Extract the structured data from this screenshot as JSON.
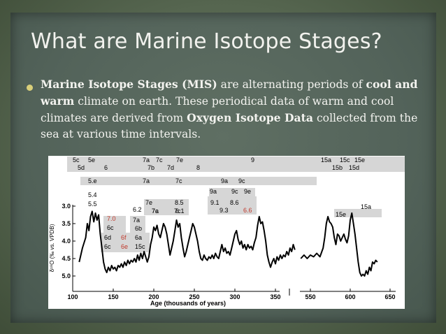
{
  "slide": {
    "title": "What are Marine Isotope Stages?",
    "bullet": {
      "t1": "Marine Isotope Stages (MIS)",
      "t2": " are alternating periods of ",
      "t3": "cool and warm",
      "t4": " climate on earth. These periodical data of warm and cool climates are derived from ",
      "t5": "Oxygen Isotope Data",
      "t6": " collected from the sea at various time intervals."
    }
  },
  "colors": {
    "highlight_red": "#c0392b",
    "label_bg": "#d6d6d6",
    "line": "#000000"
  },
  "chart_data": {
    "type": "line",
    "xlabel": "Age (thousands of years)",
    "ylabel": "δ¹⁸O (‰ vs. VPDB)",
    "xlim": [
      100,
      665
    ],
    "ylim": [
      3.0,
      5.1
    ],
    "y_inverted": true,
    "x_ticks": [
      "100",
      "150",
      "200",
      "250",
      "300",
      "350",
      "550",
      "600",
      "650"
    ],
    "y_ticks": [
      "3.0",
      "3.5",
      "4.0",
      "4.5",
      "5.0"
    ],
    "axis_break": [
      390,
      530
    ],
    "stage_labels_top": [
      "5c",
      "5e",
      "5d",
      "6",
      "7a",
      "7c",
      "7b",
      "7d",
      "7e",
      "8",
      "9",
      "15a",
      "15c",
      "15e",
      "15b",
      "15d"
    ],
    "stage_labels_inner": [
      "5.e",
      "7a",
      "7c",
      "9a",
      "9c",
      "5.4",
      "5.5",
      "9a",
      "9c",
      "9e",
      "7a",
      "7c",
      "7e",
      "8.5",
      "9.1",
      "8.6",
      "9.3",
      "6.6",
      "6.2",
      "7.0",
      "7a",
      "7c",
      "6.1",
      "6c",
      "6b",
      "6d",
      "6f",
      "6a",
      "6c",
      "6e",
      "15c",
      "15a",
      "15e"
    ],
    "red_labels": [
      "6.6",
      "7.0",
      "6f",
      "6e"
    ],
    "series": [
      {
        "segment": "left",
        "points": [
          [
            108,
            4.6
          ],
          [
            112,
            4.2
          ],
          [
            116,
            3.9
          ],
          [
            118,
            3.5
          ],
          [
            120,
            3.7
          ],
          [
            122,
            3.3
          ],
          [
            124,
            3.15
          ],
          [
            126,
            3.45
          ],
          [
            128,
            3.2
          ],
          [
            130,
            3.4
          ],
          [
            132,
            3.25
          ],
          [
            134,
            3.8
          ],
          [
            136,
            4.2
          ],
          [
            138,
            4.6
          ],
          [
            140,
            4.8
          ],
          [
            142,
            4.9
          ],
          [
            144,
            4.75
          ],
          [
            146,
            4.85
          ],
          [
            148,
            4.7
          ],
          [
            150,
            4.8
          ],
          [
            152,
            4.75
          ],
          [
            154,
            4.85
          ],
          [
            156,
            4.7
          ],
          [
            158,
            4.75
          ],
          [
            160,
            4.65
          ],
          [
            162,
            4.75
          ],
          [
            164,
            4.6
          ],
          [
            166,
            4.7
          ],
          [
            168,
            4.55
          ],
          [
            170,
            4.65
          ],
          [
            172,
            4.55
          ],
          [
            174,
            4.6
          ],
          [
            176,
            4.5
          ],
          [
            178,
            4.6
          ],
          [
            180,
            4.4
          ],
          [
            182,
            4.55
          ],
          [
            184,
            4.35
          ],
          [
            186,
            4.5
          ],
          [
            188,
            4.3
          ],
          [
            190,
            4.45
          ],
          [
            192,
            4.6
          ],
          [
            194,
            4.45
          ],
          [
            196,
            4.1
          ],
          [
            198,
            3.9
          ],
          [
            200,
            3.6
          ],
          [
            202,
            3.7
          ],
          [
            204,
            3.55
          ],
          [
            206,
            3.8
          ],
          [
            208,
            3.9
          ],
          [
            210,
            3.7
          ],
          [
            212,
            3.5
          ],
          [
            214,
            3.6
          ],
          [
            216,
            3.8
          ],
          [
            218,
            4.1
          ],
          [
            220,
            4.4
          ],
          [
            222,
            4.2
          ],
          [
            224,
            4.0
          ],
          [
            226,
            3.7
          ],
          [
            228,
            3.4
          ],
          [
            230,
            3.6
          ],
          [
            232,
            3.5
          ],
          [
            234,
            3.9
          ],
          [
            236,
            4.2
          ],
          [
            238,
            4.45
          ],
          [
            240,
            4.3
          ],
          [
            242,
            4.1
          ],
          [
            244,
            3.9
          ],
          [
            246,
            3.7
          ],
          [
            248,
            3.5
          ],
          [
            250,
            3.6
          ],
          [
            252,
            3.8
          ],
          [
            254,
            4.0
          ],
          [
            256,
            4.3
          ],
          [
            258,
            4.5
          ],
          [
            260,
            4.55
          ],
          [
            262,
            4.4
          ],
          [
            264,
            4.5
          ],
          [
            266,
            4.55
          ],
          [
            268,
            4.45
          ],
          [
            270,
            4.5
          ],
          [
            272,
            4.4
          ],
          [
            274,
            4.5
          ],
          [
            276,
            4.35
          ],
          [
            278,
            4.45
          ],
          [
            280,
            4.5
          ],
          [
            282,
            4.3
          ],
          [
            284,
            4.1
          ],
          [
            286,
            4.3
          ],
          [
            288,
            4.2
          ],
          [
            290,
            4.35
          ],
          [
            292,
            4.3
          ],
          [
            294,
            4.4
          ],
          [
            296,
            4.2
          ],
          [
            298,
            4.0
          ],
          [
            300,
            3.8
          ],
          [
            302,
            3.7
          ],
          [
            304,
            3.95
          ],
          [
            306,
            4.1
          ],
          [
            308,
            4.0
          ],
          [
            310,
            4.2
          ],
          [
            312,
            4.1
          ],
          [
            314,
            4.25
          ],
          [
            316,
            4.1
          ],
          [
            318,
            4.2
          ],
          [
            320,
            4.15
          ],
          [
            322,
            4.25
          ],
          [
            324,
            4.05
          ],
          [
            326,
            3.9
          ],
          [
            328,
            3.55
          ],
          [
            330,
            3.3
          ],
          [
            332,
            3.5
          ],
          [
            334,
            3.45
          ],
          [
            336,
            3.7
          ],
          [
            338,
            4.0
          ],
          [
            340,
            4.4
          ],
          [
            342,
            4.6
          ],
          [
            344,
            4.75
          ],
          [
            346,
            4.6
          ],
          [
            348,
            4.5
          ],
          [
            350,
            4.65
          ],
          [
            352,
            4.45
          ],
          [
            354,
            4.55
          ],
          [
            356,
            4.4
          ],
          [
            358,
            4.5
          ],
          [
            360,
            4.4
          ],
          [
            362,
            4.45
          ],
          [
            364,
            4.3
          ],
          [
            366,
            4.4
          ],
          [
            368,
            4.2
          ],
          [
            370,
            4.3
          ],
          [
            372,
            4.1
          ],
          [
            374,
            4.25
          ]
        ]
      },
      {
        "segment": "right",
        "points": [
          [
            538,
            4.5
          ],
          [
            542,
            4.4
          ],
          [
            546,
            4.5
          ],
          [
            550,
            4.4
          ],
          [
            554,
            4.45
          ],
          [
            558,
            4.35
          ],
          [
            562,
            4.45
          ],
          [
            566,
            4.2
          ],
          [
            568,
            3.9
          ],
          [
            570,
            3.5
          ],
          [
            572,
            3.3
          ],
          [
            574,
            3.45
          ],
          [
            576,
            3.5
          ],
          [
            578,
            3.6
          ],
          [
            580,
            3.9
          ],
          [
            582,
            4.1
          ],
          [
            584,
            3.8
          ],
          [
            586,
            3.85
          ],
          [
            588,
            4.0
          ],
          [
            590,
            3.9
          ],
          [
            592,
            3.8
          ],
          [
            594,
            3.95
          ],
          [
            596,
            4.05
          ],
          [
            598,
            3.85
          ],
          [
            600,
            3.4
          ],
          [
            602,
            3.2
          ],
          [
            604,
            3.5
          ],
          [
            606,
            3.8
          ],
          [
            608,
            4.2
          ],
          [
            610,
            4.6
          ],
          [
            612,
            4.9
          ],
          [
            614,
            5.0
          ],
          [
            616,
            4.95
          ],
          [
            618,
            5.0
          ],
          [
            620,
            4.85
          ],
          [
            622,
            4.95
          ],
          [
            624,
            4.75
          ],
          [
            626,
            4.85
          ],
          [
            628,
            4.6
          ],
          [
            630,
            4.65
          ],
          [
            632,
            4.55
          ],
          [
            634,
            4.6
          ]
        ]
      }
    ]
  }
}
